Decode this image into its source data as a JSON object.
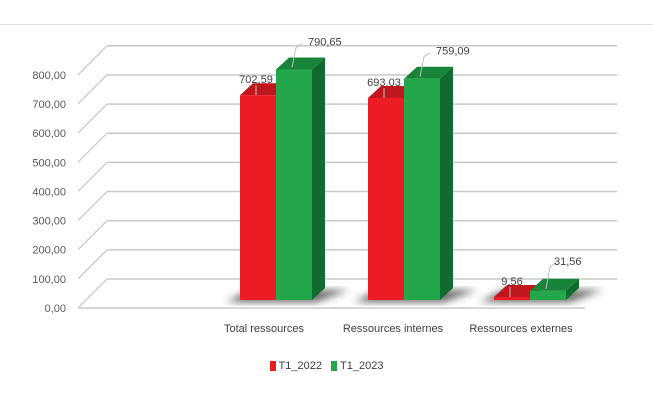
{
  "chart_data": {
    "type": "bar",
    "style": "3d-clustered-column",
    "title": "",
    "xlabel": "",
    "ylabel": "",
    "categories": [
      "Total ressources",
      "Ressources internes",
      "Ressources externes"
    ],
    "series": [
      {
        "name": "T1_2022",
        "values": [
          702.59,
          693.03,
          9.56
        ],
        "labels": [
          "702,59",
          "693,03",
          "9,56"
        ],
        "color": "#ed1c24",
        "top_color": "#c0161d",
        "side_color": "#a31218"
      },
      {
        "name": "T1_2023",
        "values": [
          790.65,
          759.09,
          31.56
        ],
        "labels": [
          "790,65",
          "759,09",
          "31,56"
        ],
        "color": "#22a84a",
        "top_color": "#17843a",
        "side_color": "#126b2e"
      }
    ],
    "yticks": [
      "0,00",
      "100,00",
      "200,00",
      "300,00",
      "400,00",
      "500,00",
      "600,00",
      "700,00",
      "800,00"
    ],
    "ylim": [
      0,
      900
    ],
    "grid": true,
    "legend_position": "bottom"
  },
  "legend": {
    "items": [
      {
        "label": "T1_2022",
        "color": "#ed1c24"
      },
      {
        "label": "T1_2023",
        "color": "#22a84a"
      }
    ]
  }
}
